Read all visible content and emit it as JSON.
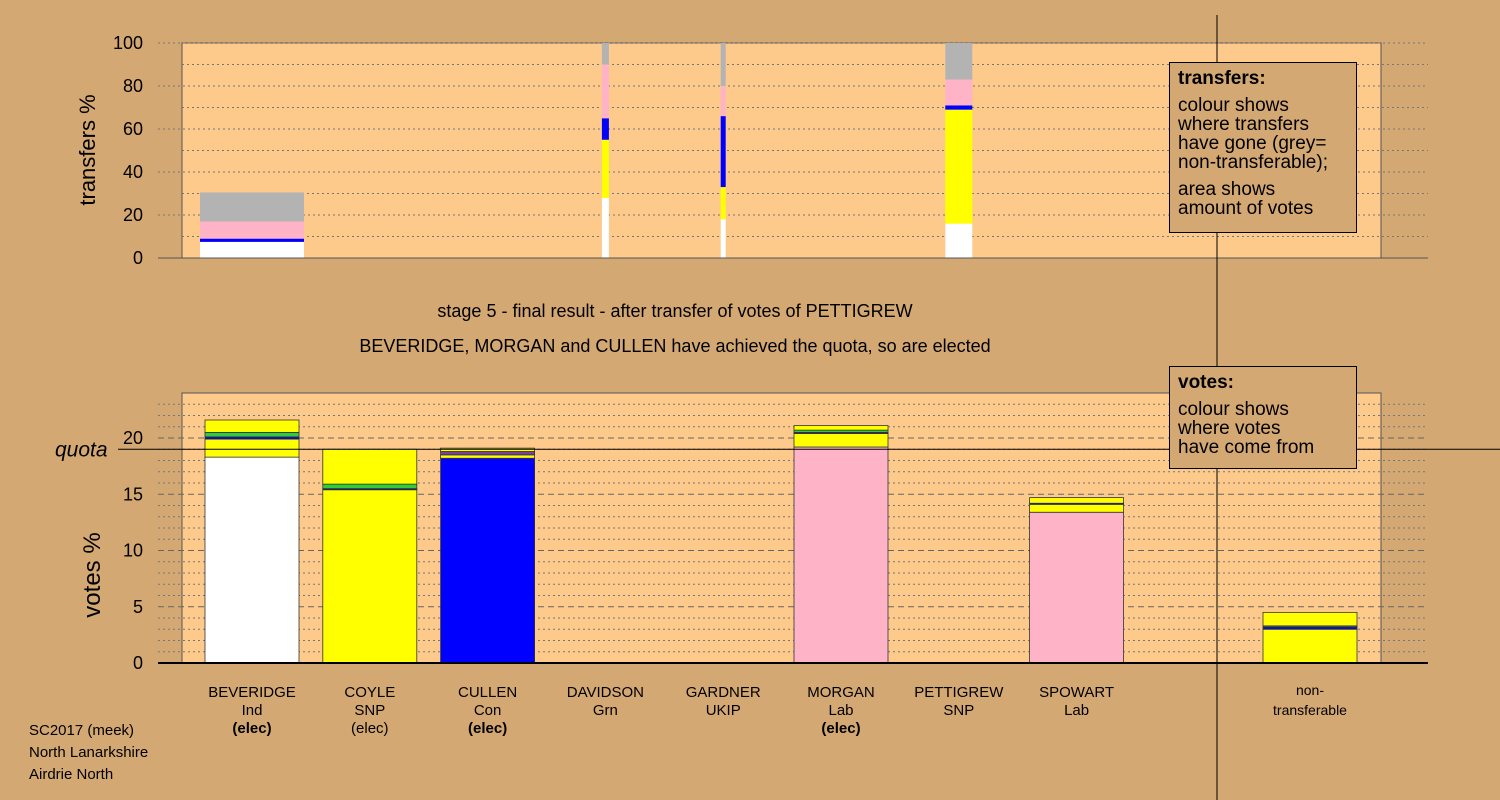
{
  "colors": {
    "background": "#d4a873",
    "plot_bg": "#fdca8c",
    "Ind": "#ffffff",
    "SNP": "#ffff00",
    "Con": "#0000ff",
    "Grn": "#33cc33",
    "UKIP": "#7a3fa0",
    "Lab": "#ffb3c6",
    "nontransferable": "#b3b3b3"
  },
  "chart_data": [
    {
      "type": "bar",
      "name": "transfers",
      "ylabel": "transfers %",
      "ylim": [
        0,
        100
      ],
      "yticks": [
        0,
        20,
        40,
        60,
        80,
        100
      ],
      "legend": {
        "title": "transfers:",
        "lines": [
          "colour shows",
          "where transfers",
          "have gone (grey=",
          "non-transferable);"
        ],
        "lines2": [
          "area shows",
          "amount of votes"
        ]
      },
      "bars": [
        {
          "from": "BEVERIDGE",
          "width_share": 0.6,
          "segments": [
            {
              "party": "Ind",
              "value": 7.5
            },
            {
              "party": "Con",
              "value": 1.5
            },
            {
              "party": "Lab",
              "value": 8
            },
            {
              "party": "nontransferable",
              "value": 13.5
            }
          ]
        },
        {
          "from": "DAVIDSON",
          "width_share": 0.04,
          "segments": [
            {
              "party": "Ind",
              "value": 28
            },
            {
              "party": "SNP",
              "value": 27
            },
            {
              "party": "Con",
              "value": 10
            },
            {
              "party": "Lab",
              "value": 25
            },
            {
              "party": "nontransferable",
              "value": 10
            }
          ]
        },
        {
          "from": "GARDNER",
          "width_share": 0.03,
          "segments": [
            {
              "party": "Ind",
              "value": 18
            },
            {
              "party": "SNP",
              "value": 15
            },
            {
              "party": "Con",
              "value": 33
            },
            {
              "party": "Lab",
              "value": 14
            },
            {
              "party": "nontransferable",
              "value": 20
            }
          ]
        },
        {
          "from": "PETTIGREW",
          "width_share": 0.16,
          "segments": [
            {
              "party": "Ind",
              "value": 16
            },
            {
              "party": "SNP",
              "value": 53
            },
            {
              "party": "Con",
              "value": 2
            },
            {
              "party": "Lab",
              "value": 12
            },
            {
              "party": "nontransferable",
              "value": 17
            }
          ]
        }
      ]
    },
    {
      "type": "bar",
      "name": "votes",
      "ylabel": "votes %",
      "ylim": [
        0,
        24
      ],
      "yticks": [
        0,
        5,
        10,
        15,
        20
      ],
      "quota": 19.0,
      "quota_label": "quota",
      "legend": {
        "title": "votes:",
        "lines": [
          "colour shows",
          "where votes",
          "have come from"
        ]
      },
      "candidates": [
        {
          "name": "BEVERIDGE",
          "party": "Ind",
          "status": "(elec)",
          "status_bold": true,
          "segments": [
            {
              "party": "Ind",
              "value": 18.3
            },
            {
              "party": "SNP",
              "value": 1.6
            },
            {
              "party": "Con",
              "value": 0.2
            },
            {
              "party": "Grn",
              "value": 0.4
            },
            {
              "party": "SNP",
              "value": 1.1
            }
          ]
        },
        {
          "name": "COYLE",
          "party": "SNP",
          "status": "(elec)",
          "status_bold": false,
          "segments": [
            {
              "party": "SNP",
              "value": 15.4
            },
            {
              "party": "Con",
              "value": 0.1
            },
            {
              "party": "Grn",
              "value": 0.4
            },
            {
              "party": "SNP",
              "value": 3.1
            }
          ]
        },
        {
          "name": "CULLEN",
          "party": "Con",
          "status": "(elec)",
          "status_bold": true,
          "segments": [
            {
              "party": "Con",
              "value": 18.2
            },
            {
              "party": "SNP",
              "value": 0.3
            },
            {
              "party": "UKIP",
              "value": 0.3
            },
            {
              "party": "SNP",
              "value": 0.3
            }
          ]
        },
        {
          "name": "DAVIDSON",
          "party": "Grn",
          "status": "",
          "status_bold": false,
          "segments": []
        },
        {
          "name": "GARDNER",
          "party": "UKIP",
          "status": "",
          "status_bold": false,
          "segments": []
        },
        {
          "name": "MORGAN",
          "party": "Lab",
          "status": "(elec)",
          "status_bold": true,
          "segments": [
            {
              "party": "Lab",
              "value": 19.2
            },
            {
              "party": "SNP",
              "value": 1.2
            },
            {
              "party": "Con",
              "value": 0.1
            },
            {
              "party": "Grn",
              "value": 0.2
            },
            {
              "party": "SNP",
              "value": 0.4
            }
          ]
        },
        {
          "name": "PETTIGREW",
          "party": "SNP",
          "status": "",
          "status_bold": false,
          "segments": []
        },
        {
          "name": "SPOWART",
          "party": "Lab",
          "status": "",
          "status_bold": false,
          "segments": [
            {
              "party": "Lab",
              "value": 13.4
            },
            {
              "party": "SNP",
              "value": 0.7
            },
            {
              "party": "Con",
              "value": 0.1
            },
            {
              "party": "SNP",
              "value": 0.5
            }
          ]
        }
      ],
      "nontransferable": {
        "label_line1": "non-",
        "label_line2": "transferable",
        "segments": [
          {
            "party": "SNP",
            "value": 3.0
          },
          {
            "party": "Con",
            "value": 0.2
          },
          {
            "party": "Grn",
            "value": 0.1
          },
          {
            "party": "SNP",
            "value": 1.2
          }
        ]
      }
    }
  ],
  "stage_title": "stage 5 - final result - after transfer of votes of PETTIGREW",
  "stage_subtitle": "BEVERIDGE, MORGAN and CULLEN have achieved the quota, so are elected",
  "footer": [
    "SC2017 (meek)",
    "North Lanarkshire",
    "Airdrie North"
  ]
}
